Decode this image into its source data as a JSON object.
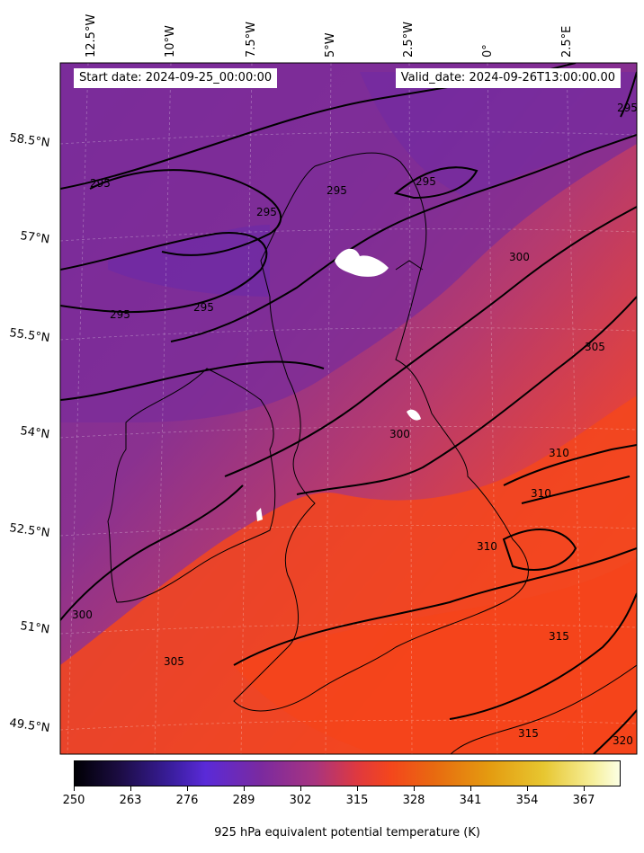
{
  "header": {
    "start_date": "Start date: 2024-09-25_00:00:00",
    "valid_date": "Valid_date: 2024-09-26T13:00:00.00"
  },
  "axes": {
    "lon_labels": [
      "12.5°W",
      "10°W",
      "7.5°W",
      "5°W",
      "2.5°W",
      "0°",
      "2.5°E"
    ],
    "lat_labels": [
      "58.5°N",
      "57°N",
      "55.5°N",
      "54°N",
      "52.5°N",
      "51°N",
      "49.5°N"
    ]
  },
  "contour_labels": [
    "295",
    "295",
    "295",
    "295",
    "295",
    "295",
    "295",
    "300",
    "300",
    "300",
    "305",
    "305",
    "310",
    "310",
    "310",
    "315",
    "315",
    "320"
  ],
  "colorbar": {
    "title": "925 hPa equivalent potential temperature (K)",
    "ticks": [
      "250",
      "263",
      "276",
      "289",
      "302",
      "315",
      "328",
      "341",
      "354",
      "367"
    ],
    "colormap": [
      "#000004",
      "#3b1ea0",
      "#7a2aa0",
      "#e0393e",
      "#e86a10",
      "#e7c630",
      "#fcffe4"
    ]
  },
  "colors": {
    "cool_region": "#7b2c9a",
    "warm_region": "#f4461c",
    "contour": "#000000"
  }
}
